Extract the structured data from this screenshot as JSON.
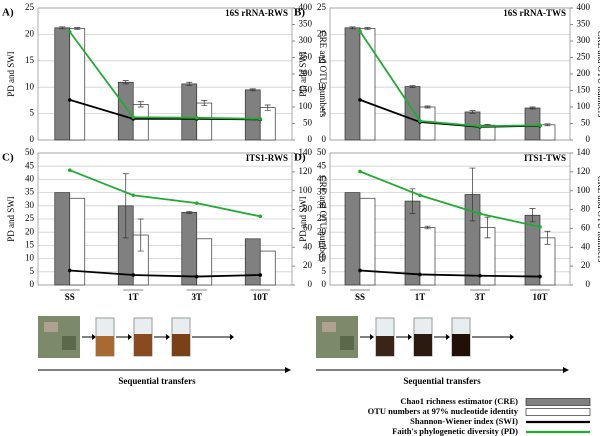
{
  "chart_data": [
    {
      "type": "bar",
      "label": "A)",
      "title": "16S rRNA-RWS",
      "ylabel": "PD and SWI",
      "y2label": "CRE and OTU numbers",
      "categories": [
        null,
        null,
        null,
        null
      ],
      "ylim": [
        0,
        25
      ],
      "yticks": [
        0,
        5,
        10,
        15,
        20,
        25
      ],
      "y2lim": [
        0,
        400
      ],
      "y2ticks": [
        0,
        50,
        100,
        150,
        200,
        250,
        300,
        350,
        400
      ],
      "grid": true,
      "series": [
        {
          "name": "Chao1 richness estimator (CRE)",
          "type": "bar",
          "axis": "y2",
          "color": "#808080",
          "values": [
            340,
            175,
            170,
            152
          ],
          "errors": [
            3,
            5,
            5,
            3
          ]
        },
        {
          "name": "OTU numbers at 97% nucleotide identity",
          "type": "bar",
          "axis": "y2",
          "color": "#ffffff",
          "values": [
            338,
            108,
            112,
            98
          ],
          "errors": [
            3,
            8,
            8,
            8
          ]
        },
        {
          "name": "Shannon-Wiener index (SWI)",
          "type": "line",
          "color": "#000000",
          "values": [
            7.6,
            4.0,
            4.0,
            3.9
          ]
        },
        {
          "name": "Faith's phylogenetic diversity (PD)",
          "type": "line",
          "color": "#22aa33",
          "values": [
            20.5,
            4.3,
            4.2,
            4.0
          ]
        }
      ]
    },
    {
      "type": "bar",
      "label": "B)",
      "title": "16S rRNA-TWS",
      "ylabel": "PD and SWI",
      "y2label": "CRE and OTU numbers",
      "categories": [
        null,
        null,
        null,
        null
      ],
      "ylim": [
        0,
        25
      ],
      "yticks": [
        0,
        5,
        10,
        15,
        20,
        25
      ],
      "y2lim": [
        0,
        400
      ],
      "y2ticks": [
        0,
        50,
        100,
        150,
        200,
        250,
        300,
        350,
        400
      ],
      "grid": true,
      "series": [
        {
          "type": "bar",
          "axis": "y2",
          "color": "#808080",
          "values": [
            340,
            162,
            85,
            97
          ],
          "errors": [
            3,
            3,
            4,
            3
          ]
        },
        {
          "type": "bar",
          "axis": "y2",
          "color": "#ffffff",
          "values": [
            338,
            100,
            45,
            46
          ],
          "errors": [
            3,
            3,
            2,
            3
          ]
        },
        {
          "type": "line",
          "color": "#000000",
          "values": [
            7.6,
            3.4,
            2.5,
            2.7
          ]
        },
        {
          "type": "line",
          "color": "#22aa33",
          "values": [
            20.6,
            3.6,
            2.6,
            2.8
          ]
        }
      ]
    },
    {
      "type": "bar",
      "label": "C)",
      "title": "ITS1-RWS",
      "ylabel": "PD and SWI",
      "y2label": "CRE and OTU numbers",
      "xlabel": "Sequential transfers",
      "categories": [
        "SS",
        "1T",
        "3T",
        "10T"
      ],
      "ylim": [
        0,
        50
      ],
      "yticks": [
        0,
        5,
        10,
        15,
        20,
        25,
        30,
        35,
        40,
        45,
        50
      ],
      "y2lim": [
        0,
        140
      ],
      "y2ticks": [
        0,
        20,
        40,
        60,
        80,
        100,
        120,
        140
      ],
      "grid": true,
      "series": [
        {
          "type": "bar",
          "axis": "y2",
          "color": "#808080",
          "values": [
            98,
            84,
            77,
            49
          ],
          "errors": [
            0,
            34,
            1,
            0
          ]
        },
        {
          "type": "bar",
          "axis": "y2",
          "color": "#ffffff",
          "values": [
            92,
            53,
            49,
            36
          ],
          "errors": [
            0,
            17,
            0,
            0
          ]
        },
        {
          "type": "line",
          "color": "#000000",
          "values": [
            5.5,
            3.8,
            3.2,
            3.8
          ]
        },
        {
          "type": "line",
          "color": "#22aa33",
          "values": [
            43.5,
            34,
            31,
            26
          ]
        }
      ]
    },
    {
      "type": "bar",
      "label": "D)",
      "title": "ITS1-TWS",
      "ylabel": "PD and SWI",
      "y2label": "CRE and OTU numbers",
      "xlabel": "Sequential transfers",
      "categories": [
        "SS",
        "1T",
        "3T",
        "10T"
      ],
      "ylim": [
        0,
        50
      ],
      "yticks": [
        0,
        5,
        10,
        15,
        20,
        25,
        30,
        35,
        40,
        45,
        50
      ],
      "y2lim": [
        0,
        140
      ],
      "y2ticks": [
        0,
        20,
        40,
        60,
        80,
        100,
        120,
        140
      ],
      "grid": true,
      "series": [
        {
          "type": "bar",
          "axis": "y2",
          "color": "#808080",
          "values": [
            98,
            89,
            96,
            74
          ],
          "errors": [
            0,
            13,
            28,
            7
          ]
        },
        {
          "type": "bar",
          "axis": "y2",
          "color": "#ffffff",
          "values": [
            92,
            61,
            61,
            50
          ],
          "errors": [
            0,
            1.4,
            11,
            7
          ]
        },
        {
          "type": "line",
          "color": "#000000",
          "values": [
            5.5,
            4.0,
            3.5,
            3.2
          ]
        },
        {
          "type": "line",
          "color": "#22aa33",
          "values": [
            43,
            34,
            27,
            22
          ]
        }
      ]
    }
  ]
}
